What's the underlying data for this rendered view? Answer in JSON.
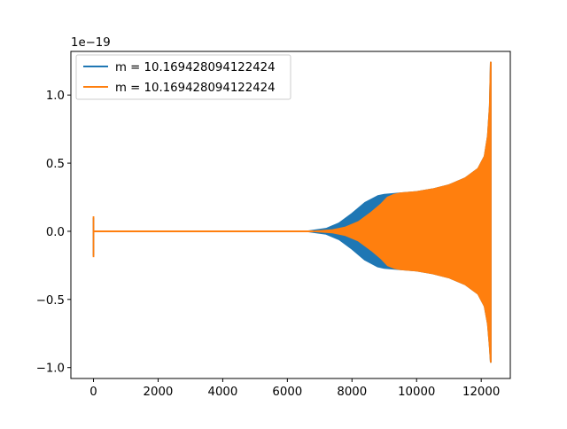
{
  "chart_data": {
    "type": "line",
    "title": "",
    "xlabel": "",
    "ylabel": "",
    "offset_text": "1e−19",
    "y_scale_factor": 1e-19,
    "xlim": [
      -700,
      12900
    ],
    "ylim": [
      -1.08,
      1.32
    ],
    "x_ticks": [
      0,
      2000,
      4000,
      6000,
      8000,
      10000,
      12000
    ],
    "x_tick_labels": [
      "0",
      "2000",
      "4000",
      "6000",
      "8000",
      "10000",
      "12000"
    ],
    "y_ticks": [
      -1.0,
      -0.5,
      0.0,
      0.5,
      1.0
    ],
    "y_tick_labels": [
      "−1.0",
      "−0.5",
      "0.0",
      "0.5",
      "1.0"
    ],
    "grid": false,
    "legend_position": "upper-left",
    "series": [
      {
        "name": "m = 10.169428094122424",
        "color": "#1f77b4",
        "upper_envelope": [
          [
            0,
            0.0
          ],
          [
            6600,
            0.0
          ],
          [
            7200,
            0.02
          ],
          [
            7600,
            0.06
          ],
          [
            8000,
            0.13
          ],
          [
            8400,
            0.21
          ],
          [
            8800,
            0.26
          ],
          [
            9000,
            0.27
          ],
          [
            9500,
            0.28
          ],
          [
            10000,
            0.29
          ],
          [
            10500,
            0.31
          ],
          [
            11000,
            0.34
          ],
          [
            11500,
            0.39
          ],
          [
            11900,
            0.46
          ],
          [
            12100,
            0.55
          ],
          [
            12200,
            0.7
          ],
          [
            12260,
            0.92
          ],
          [
            12290,
            1.24
          ],
          [
            12300,
            1.24
          ]
        ],
        "lower_envelope": [
          [
            0,
            0.0
          ],
          [
            6600,
            0.0
          ],
          [
            7200,
            -0.02
          ],
          [
            7600,
            -0.06
          ],
          [
            8000,
            -0.13
          ],
          [
            8400,
            -0.21
          ],
          [
            8800,
            -0.26
          ],
          [
            9000,
            -0.27
          ],
          [
            9500,
            -0.28
          ],
          [
            10000,
            -0.29
          ],
          [
            10500,
            -0.31
          ],
          [
            11000,
            -0.34
          ],
          [
            11500,
            -0.39
          ],
          [
            11900,
            -0.46
          ],
          [
            12100,
            -0.55
          ],
          [
            12200,
            -0.68
          ],
          [
            12260,
            -0.85
          ],
          [
            12290,
            -0.96
          ],
          [
            12300,
            -0.96
          ]
        ],
        "initial_spike": [
          [
            0,
            0.0
          ],
          [
            0,
            0.1
          ],
          [
            0,
            -0.18
          ],
          [
            0,
            0.0
          ]
        ]
      },
      {
        "name": "m = 10.169428094122424",
        "color": "#ff7f0e",
        "upper_envelope": [
          [
            0,
            0.0
          ],
          [
            6800,
            0.0
          ],
          [
            7400,
            0.01
          ],
          [
            7800,
            0.03
          ],
          [
            8200,
            0.07
          ],
          [
            8600,
            0.14
          ],
          [
            8900,
            0.2
          ],
          [
            9100,
            0.25
          ],
          [
            9300,
            0.27
          ],
          [
            9500,
            0.28
          ],
          [
            10000,
            0.29
          ],
          [
            10500,
            0.31
          ],
          [
            11000,
            0.34
          ],
          [
            11500,
            0.39
          ],
          [
            11900,
            0.46
          ],
          [
            12100,
            0.55
          ],
          [
            12200,
            0.7
          ],
          [
            12260,
            0.92
          ],
          [
            12290,
            1.24
          ],
          [
            12300,
            1.24
          ]
        ],
        "lower_envelope": [
          [
            0,
            0.0
          ],
          [
            6800,
            0.0
          ],
          [
            7400,
            -0.01
          ],
          [
            7800,
            -0.03
          ],
          [
            8200,
            -0.07
          ],
          [
            8600,
            -0.14
          ],
          [
            8900,
            -0.2
          ],
          [
            9100,
            -0.25
          ],
          [
            9300,
            -0.27
          ],
          [
            9500,
            -0.28
          ],
          [
            10000,
            -0.29
          ],
          [
            10500,
            -0.31
          ],
          [
            11000,
            -0.34
          ],
          [
            11500,
            -0.39
          ],
          [
            11900,
            -0.46
          ],
          [
            12100,
            -0.55
          ],
          [
            12200,
            -0.68
          ],
          [
            12260,
            -0.85
          ],
          [
            12290,
            -0.96
          ],
          [
            12300,
            -0.96
          ]
        ],
        "initial_spike": [
          [
            0,
            0.0
          ],
          [
            0,
            0.11
          ],
          [
            0,
            -0.19
          ],
          [
            0,
            0.0
          ]
        ]
      }
    ]
  }
}
